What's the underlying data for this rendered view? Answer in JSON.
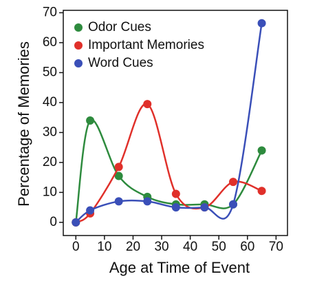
{
  "chart_data": {
    "type": "line",
    "xlabel": "Age at Time of Event",
    "ylabel": "Percentage of Memories",
    "x": [
      0,
      5,
      15,
      25,
      35,
      45,
      55,
      65
    ],
    "series": [
      {
        "name": "Odor Cues",
        "color": "#2e8b3e",
        "values": [
          0,
          34,
          15.5,
          8.5,
          6,
          6,
          6,
          24
        ]
      },
      {
        "name": "Important Memories",
        "color": "#e0302a",
        "values": [
          0,
          3,
          18.5,
          39.5,
          9.5,
          5,
          13.5,
          10.5
        ]
      },
      {
        "name": "Word Cues",
        "color": "#3a4fb8",
        "values": [
          0,
          4,
          7,
          7,
          5,
          5,
          6,
          66.5
        ]
      }
    ],
    "xlim": [
      -4.4,
      74
    ],
    "ylim": [
      -4.4,
      70.8
    ],
    "xticks": [
      0,
      10,
      20,
      30,
      40,
      50,
      60,
      70
    ],
    "yticks": [
      0,
      10,
      20,
      30,
      40,
      50,
      60,
      70
    ],
    "smooth": true,
    "legend": "upper left"
  }
}
